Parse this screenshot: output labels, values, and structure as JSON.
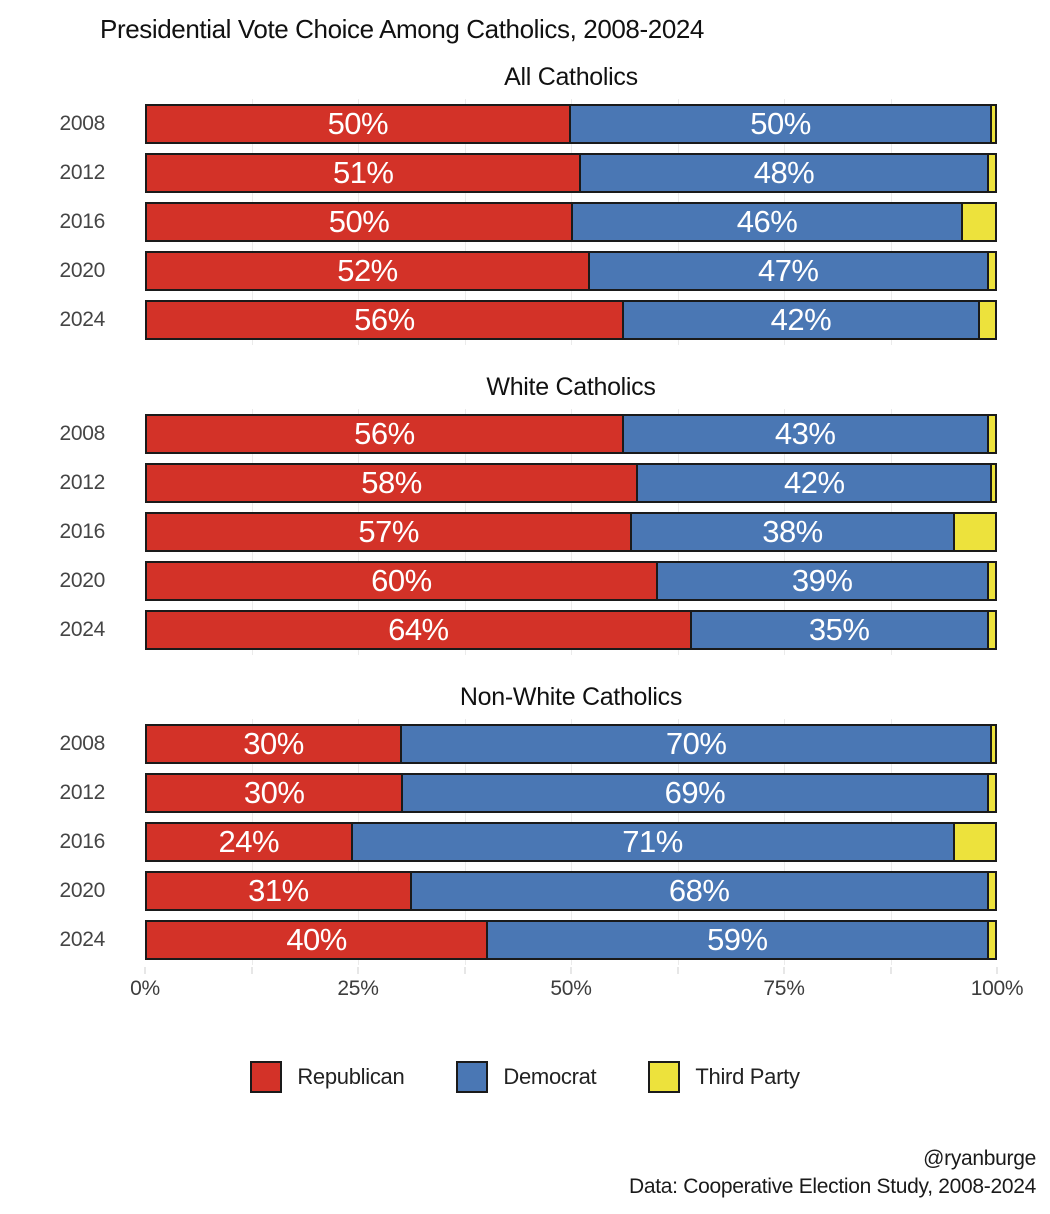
{
  "title": "Presidential Vote Choice Among Catholics, 2008-2024",
  "colors": {
    "republican": "#D33228",
    "democrat": "#4A77B4",
    "third_party": "#EDE23C",
    "border": "#1A1A1A"
  },
  "axis": {
    "ticks": [
      "0%",
      "25%",
      "50%",
      "75%",
      "100%"
    ],
    "tick_positions": [
      0,
      25,
      50,
      75,
      100
    ],
    "minor_tick_step": 12.5
  },
  "legend": [
    {
      "label": "Republican",
      "color": "#D33228"
    },
    {
      "label": "Democrat",
      "color": "#4A77B4"
    },
    {
      "label": "Third Party",
      "color": "#EDE23C"
    }
  ],
  "footer": {
    "handle": "@ryanburge",
    "source": "Data: Cooperative Election Study, 2008-2024"
  },
  "chart_data": [
    {
      "type": "bar",
      "orientation": "horizontal-stacked",
      "title": "All Catholics",
      "categories": [
        "2008",
        "2012",
        "2016",
        "2020",
        "2024"
      ],
      "series": [
        {
          "name": "Republican",
          "values": [
            50,
            51,
            50,
            52,
            56
          ]
        },
        {
          "name": "Democrat",
          "values": [
            50,
            48,
            46,
            47,
            42
          ]
        },
        {
          "name": "Third Party",
          "values": [
            0,
            1,
            4,
            1,
            2
          ]
        }
      ],
      "xlim": [
        0,
        100
      ],
      "value_suffix": "%"
    },
    {
      "type": "bar",
      "orientation": "horizontal-stacked",
      "title": "White Catholics",
      "categories": [
        "2008",
        "2012",
        "2016",
        "2020",
        "2024"
      ],
      "series": [
        {
          "name": "Republican",
          "values": [
            56,
            58,
            57,
            60,
            64
          ]
        },
        {
          "name": "Democrat",
          "values": [
            43,
            42,
            38,
            39,
            35
          ]
        },
        {
          "name": "Third Party",
          "values": [
            1,
            0,
            5,
            1,
            1
          ]
        }
      ],
      "xlim": [
        0,
        100
      ],
      "value_suffix": "%"
    },
    {
      "type": "bar",
      "orientation": "horizontal-stacked",
      "title": "Non-White Catholics",
      "categories": [
        "2008",
        "2012",
        "2016",
        "2020",
        "2024"
      ],
      "series": [
        {
          "name": "Republican",
          "values": [
            30,
            30,
            24,
            31,
            40
          ]
        },
        {
          "name": "Democrat",
          "values": [
            70,
            69,
            71,
            68,
            59
          ]
        },
        {
          "name": "Third Party",
          "values": [
            0,
            1,
            5,
            1,
            1
          ]
        }
      ],
      "xlim": [
        0,
        100
      ],
      "value_suffix": "%"
    }
  ]
}
